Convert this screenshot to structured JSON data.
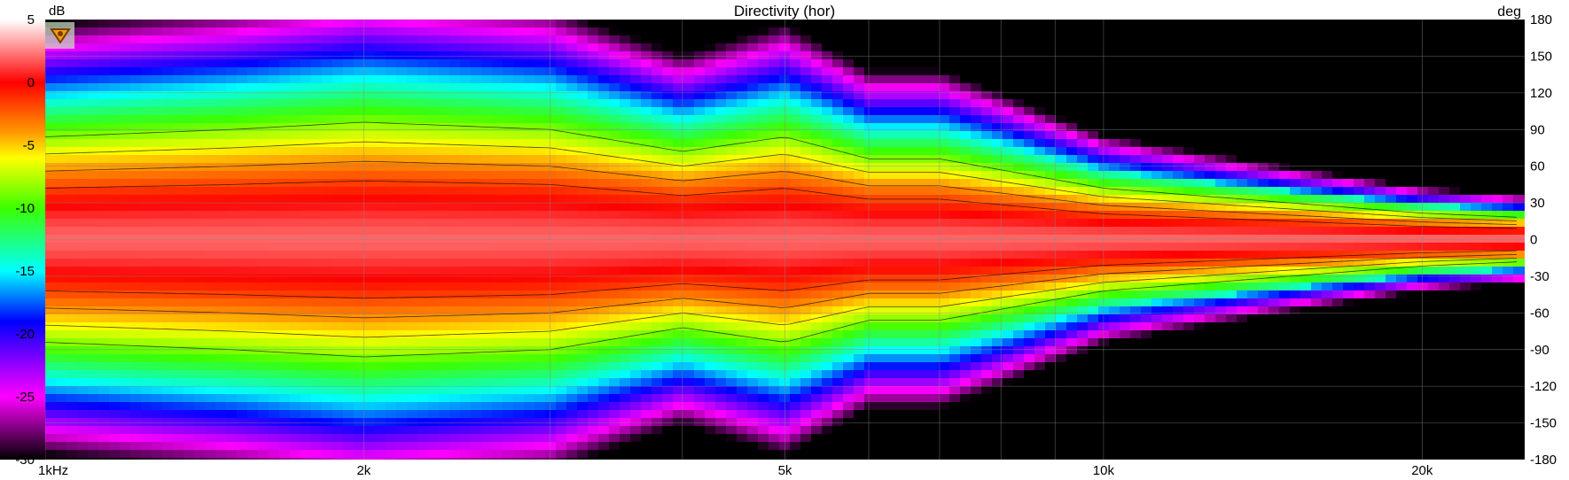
{
  "chart_data": {
    "type": "heatmap",
    "title": "Directivity (hor)",
    "colorbar": {
      "unit": "dB",
      "ticks": [
        "5",
        "0",
        "-5",
        "-10",
        "-15",
        "-20",
        "-25",
        "-30"
      ],
      "range": [
        -30,
        5
      ],
      "stops": [
        {
          "db": 5,
          "color": "#ffffff"
        },
        {
          "db": 0,
          "color": "#ff0000"
        },
        {
          "db": -4,
          "color": "#ff9a00"
        },
        {
          "db": -6,
          "color": "#ffff00"
        },
        {
          "db": -10,
          "color": "#3cff00"
        },
        {
          "db": -15,
          "color": "#00ffff"
        },
        {
          "db": -19,
          "color": "#0000ff"
        },
        {
          "db": -25,
          "color": "#ff00ff"
        },
        {
          "db": -30,
          "color": "#000000"
        }
      ]
    },
    "x_axis": {
      "scale": "log",
      "range": [
        1000,
        25000
      ],
      "tick_values": [
        1000,
        2000,
        5000,
        10000,
        20000
      ],
      "tick_labels": [
        "1kHz",
        "2k",
        "5k",
        "10k",
        "20k"
      ]
    },
    "y_axis": {
      "unit": "deg",
      "range": [
        -180,
        180
      ],
      "tick_values": [
        180,
        150,
        120,
        90,
        60,
        30,
        0,
        -30,
        -60,
        -90,
        -120,
        -150,
        -180
      ],
      "tick_labels": [
        "180",
        "150",
        "120",
        "90",
        "60",
        "30",
        "0",
        "-30",
        "-60",
        "-90",
        "-120",
        "-150",
        "-180"
      ]
    },
    "grid": true,
    "contours": true,
    "beamwidth_6db_deg": [
      {
        "f": 1000,
        "half_angle": 70
      },
      {
        "f": 1500,
        "half_angle": 75
      },
      {
        "f": 2000,
        "half_angle": 80
      },
      {
        "f": 3000,
        "half_angle": 75
      },
      {
        "f": 4000,
        "half_angle": 60
      },
      {
        "f": 5000,
        "half_angle": 70
      },
      {
        "f": 6000,
        "half_angle": 55
      },
      {
        "f": 7000,
        "half_angle": 55
      },
      {
        "f": 10000,
        "half_angle": 35
      },
      {
        "f": 15000,
        "half_angle": 25
      },
      {
        "f": 20000,
        "half_angle": 18
      },
      {
        "f": 25000,
        "half_angle": 15
      }
    ]
  },
  "logo": {
    "icon": "shield-logo-icon",
    "color": "#f0a000"
  }
}
